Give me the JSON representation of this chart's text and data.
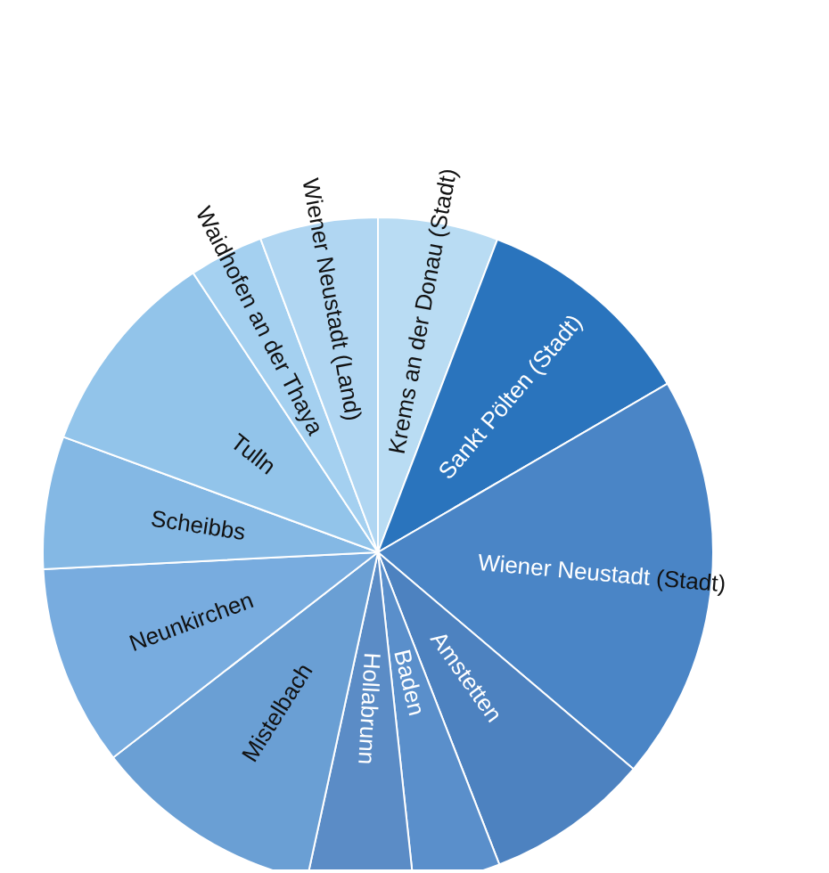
{
  "chart_data": {
    "type": "pie",
    "categories": [
      "Krems an der Donau (Stadt)",
      "Sankt Pölten (Stadt)",
      "Wiener Neustadt (Stadt)",
      "Amstetten",
      "Baden",
      "Hollabrunn",
      "Mistelbach",
      "Neunkirchen",
      "Scheibbs",
      "Tulln",
      "Waidhofen an der Thaya",
      "Wiener Neustadt (Land)"
    ],
    "values": [
      5.8,
      10.8,
      19.6,
      7.9,
      4.2,
      5.1,
      11.1,
      9.7,
      6.4,
      10.1,
      3.6,
      5.7
    ],
    "colors": [
      "#b9dcf3",
      "#2a74bd",
      "#4a85c6",
      "#4d82c0",
      "#5a8fcb",
      "#5b8cc6",
      "#6a9fd4",
      "#78acdf",
      "#84b8e4",
      "#92c4ea",
      "#a4d0f0",
      "#b0d6f2"
    ]
  }
}
